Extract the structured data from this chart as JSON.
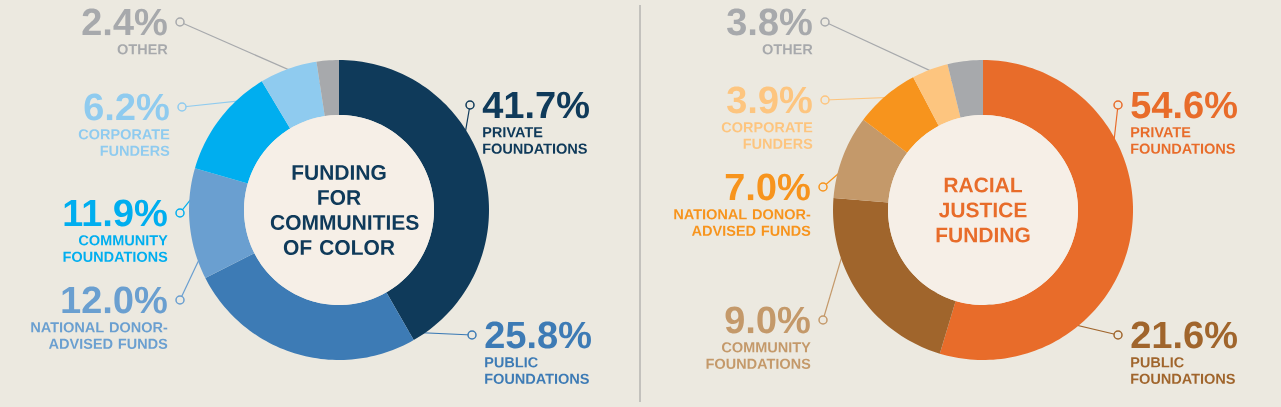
{
  "chart_data": [
    {
      "type": "donut",
      "title": "FUNDING FOR COMMUNITIES OF COLOR",
      "categories": [
        "PRIVATE FOUNDATIONS",
        "PUBLIC FOUNDATIONS",
        "NATIONAL DONOR-ADVISED FUNDS",
        "COMMUNITY FOUNDATIONS",
        "CORPORATE FUNDERS",
        "OTHER"
      ],
      "values": [
        41.7,
        25.8,
        12.0,
        11.9,
        6.2,
        2.4
      ],
      "value_labels": [
        "41.7%",
        "25.8%",
        "12.0%",
        "11.9%",
        "6.2%",
        "2.4%"
      ],
      "colors": [
        "#0f3a5a",
        "#3d7bb5",
        "#6a9fd0",
        "#00aeef",
        "#8fcbef",
        "#a7a9ac"
      ]
    },
    {
      "type": "donut",
      "title": "RACIAL JUSTICE FUNDING",
      "categories": [
        "PRIVATE FOUNDATIONS",
        "PUBLIC FOUNDATIONS",
        "COMMUNITY FOUNDATIONS",
        "NATIONAL DONOR-ADVISED FUNDS",
        "CORPORATE FUNDERS",
        "OTHER"
      ],
      "values": [
        54.6,
        21.6,
        9.0,
        7.0,
        3.9,
        3.8
      ],
      "value_labels": [
        "54.6%",
        "21.6%",
        "9.0%",
        "7.0%",
        "3.9%",
        "3.8%"
      ],
      "colors": [
        "#e86c2a",
        "#a0652c",
        "#c4996a",
        "#f7941d",
        "#fdc57f",
        "#a7a9ac"
      ]
    }
  ]
}
